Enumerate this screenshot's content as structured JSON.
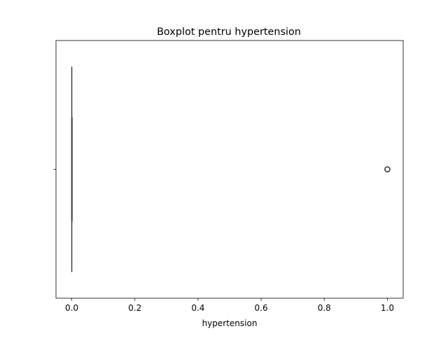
{
  "chart_data": {
    "type": "boxplot",
    "title": "Boxplot pentru hypertension",
    "xlabel": "hypertension",
    "ylabel": "",
    "xlim": [
      -0.05,
      1.05
    ],
    "x_ticks": [
      0.0,
      0.2,
      0.4,
      0.6,
      0.8,
      1.0
    ],
    "x_tick_labels": [
      "0.0",
      "0.2",
      "0.4",
      "0.6",
      "0.8",
      "1.0"
    ],
    "grid": false,
    "series": [
      {
        "min": 0.0,
        "q1": 0.0,
        "median": 0.0,
        "q3": 0.0,
        "max": 0.0,
        "outliers": [
          1.0
        ],
        "color": "#3f3f3f"
      }
    ]
  }
}
